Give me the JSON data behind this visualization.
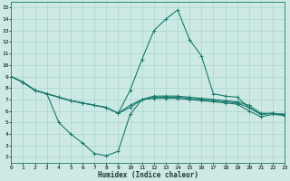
{
  "xlabel": "Humidex (Indice chaleur)",
  "ylabel": "",
  "bg_color": "#cce9e4",
  "grid_color": "#aad4cc",
  "line_color": "#1a7a6e",
  "xlim": [
    0,
    23
  ],
  "ylim": [
    1.5,
    15.5
  ],
  "xticks": [
    0,
    1,
    2,
    3,
    4,
    5,
    6,
    7,
    8,
    9,
    10,
    11,
    12,
    13,
    14,
    15,
    16,
    17,
    18,
    19,
    20,
    21,
    22,
    23
  ],
  "yticks": [
    2,
    3,
    4,
    5,
    6,
    7,
    8,
    9,
    10,
    11,
    12,
    13,
    14,
    15
  ],
  "series": [
    {
      "x": [
        0,
        1,
        2,
        3,
        4,
        5,
        6,
        7,
        8,
        9,
        10,
        11,
        12,
        13,
        14,
        15,
        16,
        17,
        18,
        19,
        20,
        21,
        22,
        23
      ],
      "y": [
        9.0,
        8.5,
        7.8,
        7.5,
        7.2,
        6.9,
        6.7,
        6.5,
        6.3,
        5.8,
        7.8,
        10.5,
        13.0,
        14.0,
        14.8,
        12.2,
        10.8,
        7.5,
        7.3,
        7.2,
        6.3,
        5.7,
        5.8,
        5.7
      ]
    },
    {
      "x": [
        0,
        1,
        2,
        3,
        4,
        5,
        6,
        7,
        8,
        9,
        10,
        11,
        12,
        13,
        14,
        15,
        16,
        17,
        18,
        19,
        20,
        21,
        22,
        23
      ],
      "y": [
        9.0,
        8.5,
        7.8,
        7.5,
        5.0,
        4.0,
        3.2,
        2.3,
        2.1,
        2.5,
        5.7,
        7.0,
        7.3,
        7.3,
        7.3,
        7.2,
        7.1,
        7.0,
        6.9,
        6.8,
        6.5,
        5.8,
        5.8,
        5.7
      ]
    },
    {
      "x": [
        0,
        1,
        2,
        3,
        4,
        5,
        6,
        7,
        8,
        9,
        10,
        11,
        12,
        13,
        14,
        15,
        16,
        17,
        18,
        19,
        20,
        21,
        22,
        23
      ],
      "y": [
        9.0,
        8.5,
        7.8,
        7.5,
        7.2,
        6.9,
        6.7,
        6.5,
        6.3,
        5.8,
        6.5,
        7.0,
        7.2,
        7.2,
        7.2,
        7.1,
        7.0,
        6.9,
        6.8,
        6.7,
        6.3,
        5.7,
        5.8,
        5.7
      ]
    },
    {
      "x": [
        0,
        1,
        2,
        3,
        4,
        5,
        6,
        7,
        8,
        9,
        10,
        11,
        12,
        13,
        14,
        15,
        16,
        17,
        18,
        19,
        20,
        21,
        22,
        23
      ],
      "y": [
        9.0,
        8.5,
        7.8,
        7.5,
        7.2,
        6.9,
        6.7,
        6.5,
        6.3,
        5.8,
        6.3,
        7.0,
        7.1,
        7.1,
        7.1,
        7.0,
        6.9,
        6.8,
        6.7,
        6.6,
        6.0,
        5.5,
        5.7,
        5.6
      ]
    }
  ]
}
